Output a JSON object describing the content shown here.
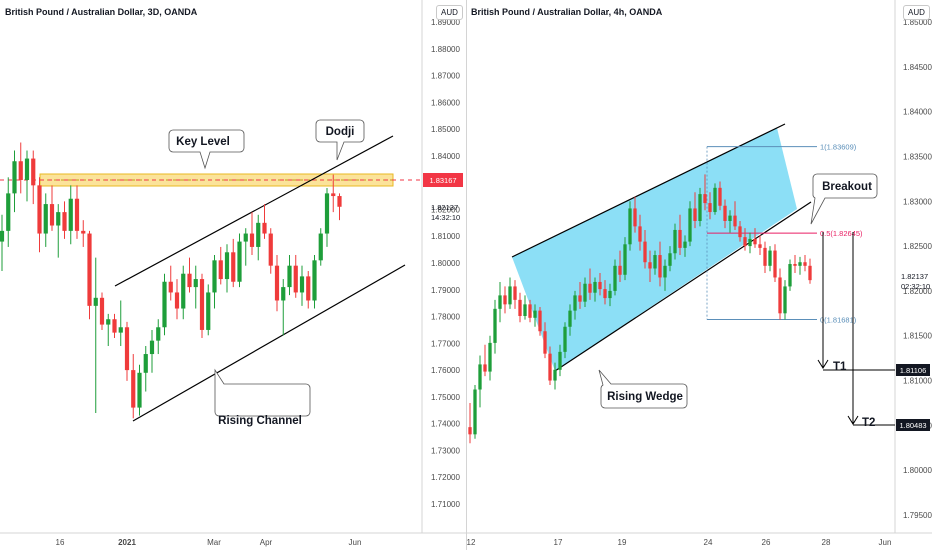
{
  "panels": {
    "left": {
      "title": "British Pound / Australian Dollar, 3D, OANDA",
      "currency": "AUD",
      "y_ticks": [
        "1.89000",
        "1.88000",
        "1.87000",
        "1.86000",
        "1.85000",
        "1.84000",
        "1.83000",
        "1.82000",
        "1.81000",
        "1.80000",
        "1.79000",
        "1.78000",
        "1.77000",
        "1.76000",
        "1.75000",
        "1.74000",
        "1.73000",
        "1.72000",
        "1.71000"
      ],
      "x_ticks": [
        {
          "label": "16",
          "bold": false
        },
        {
          "label": "2021",
          "bold": true
        },
        {
          "label": "Mar",
          "bold": false
        },
        {
          "label": "Apr",
          "bold": false
        },
        {
          "label": "Jun",
          "bold": false
        }
      ],
      "key_level_price": "1.83167",
      "last_price": "1.82137",
      "countdown": "14:32:10",
      "annotations": {
        "key_level": "Key Level",
        "dodji": "Dodji",
        "rising_channel": "Rising Channel"
      }
    },
    "right": {
      "title": "British Pound / Australian Dollar, 4h, OANDA",
      "currency": "AUD",
      "y_ticks": [
        "1.85000",
        "1.84500",
        "1.84000",
        "1.83500",
        "1.83000",
        "1.82500",
        "1.82000",
        "1.81500",
        "1.81000",
        "1.80500",
        "1.80000",
        "1.79500"
      ],
      "x_ticks": [
        {
          "label": "12",
          "bold": false
        },
        {
          "label": "17",
          "bold": false
        },
        {
          "label": "19",
          "bold": false
        },
        {
          "label": "24",
          "bold": false
        },
        {
          "label": "26",
          "bold": false
        },
        {
          "label": "28",
          "bold": false
        },
        {
          "label": "Jun",
          "bold": false
        }
      ],
      "last_price": "1.82137",
      "countdown": "02:32:10",
      "fib_levels": [
        {
          "label": "1(1.83609)",
          "value": 1.83609,
          "color": "#5b8fb9"
        },
        {
          "label": "0.5(1.82645)",
          "value": 1.82645,
          "color": "#e91e63"
        },
        {
          "label": "0(1.81681)",
          "value": 1.81681,
          "color": "#5b8fb9"
        }
      ],
      "targets": [
        {
          "label": "T1",
          "price": "1.81106"
        },
        {
          "label": "T2",
          "price": "1.80483"
        }
      ],
      "annotations": {
        "breakout": "Breakout",
        "rising_wedge": "Rising Wedge"
      }
    }
  },
  "colors": {
    "bull": "#26a69a",
    "bull_dark": "#1e9e3a",
    "bear": "#ef3b3b",
    "key_zone_fill": "#fbe39a",
    "key_zone_edge": "#e8b923",
    "wedge_fill": "#7fdcf5",
    "key_price_tag": "#f23645",
    "text": "#131722"
  },
  "chart_data": [
    {
      "type": "candlestick",
      "title": "British Pound / Australian Dollar, 3D, OANDA",
      "ylim": [
        1.705,
        1.895
      ],
      "x_ticks": [
        "16",
        "2021",
        "Mar",
        "Apr",
        "Jun"
      ],
      "key_level": 1.83167,
      "last_price": 1.82137,
      "annotations": [
        "Key Level",
        "Dodji",
        "Rising Channel"
      ],
      "candles": [
        {
          "o": 1.808,
          "h": 1.818,
          "l": 1.797,
          "c": 1.812
        },
        {
          "o": 1.812,
          "h": 1.832,
          "l": 1.806,
          "c": 1.826
        },
        {
          "o": 1.826,
          "h": 1.842,
          "l": 1.819,
          "c": 1.838
        },
        {
          "o": 1.838,
          "h": 1.845,
          "l": 1.826,
          "c": 1.831
        },
        {
          "o": 1.831,
          "h": 1.842,
          "l": 1.823,
          "c": 1.839
        },
        {
          "o": 1.839,
          "h": 1.842,
          "l": 1.822,
          "c": 1.829
        },
        {
          "o": 1.829,
          "h": 1.832,
          "l": 1.804,
          "c": 1.811
        },
        {
          "o": 1.811,
          "h": 1.826,
          "l": 1.806,
          "c": 1.822
        },
        {
          "o": 1.822,
          "h": 1.829,
          "l": 1.812,
          "c": 1.814
        },
        {
          "o": 1.814,
          "h": 1.822,
          "l": 1.802,
          "c": 1.819
        },
        {
          "o": 1.819,
          "h": 1.823,
          "l": 1.809,
          "c": 1.812
        },
        {
          "o": 1.812,
          "h": 1.829,
          "l": 1.807,
          "c": 1.824
        },
        {
          "o": 1.824,
          "h": 1.829,
          "l": 1.809,
          "c": 1.812
        },
        {
          "o": 1.812,
          "h": 1.816,
          "l": 1.806,
          "c": 1.811
        },
        {
          "o": 1.811,
          "h": 1.812,
          "l": 1.779,
          "c": 1.784
        },
        {
          "o": 1.784,
          "h": 1.802,
          "l": 1.744,
          "c": 1.787
        },
        {
          "o": 1.787,
          "h": 1.789,
          "l": 1.775,
          "c": 1.777
        },
        {
          "o": 1.777,
          "h": 1.781,
          "l": 1.769,
          "c": 1.779
        },
        {
          "o": 1.779,
          "h": 1.781,
          "l": 1.772,
          "c": 1.774
        },
        {
          "o": 1.774,
          "h": 1.786,
          "l": 1.769,
          "c": 1.776
        },
        {
          "o": 1.776,
          "h": 1.778,
          "l": 1.756,
          "c": 1.76
        },
        {
          "o": 1.76,
          "h": 1.766,
          "l": 1.742,
          "c": 1.746
        },
        {
          "o": 1.746,
          "h": 1.762,
          "l": 1.743,
          "c": 1.759
        },
        {
          "o": 1.759,
          "h": 1.769,
          "l": 1.752,
          "c": 1.766
        },
        {
          "o": 1.766,
          "h": 1.775,
          "l": 1.759,
          "c": 1.771
        },
        {
          "o": 1.771,
          "h": 1.779,
          "l": 1.766,
          "c": 1.776
        },
        {
          "o": 1.776,
          "h": 1.796,
          "l": 1.773,
          "c": 1.793
        },
        {
          "o": 1.793,
          "h": 1.799,
          "l": 1.786,
          "c": 1.789
        },
        {
          "o": 1.789,
          "h": 1.794,
          "l": 1.779,
          "c": 1.783
        },
        {
          "o": 1.783,
          "h": 1.799,
          "l": 1.779,
          "c": 1.796
        },
        {
          "o": 1.796,
          "h": 1.802,
          "l": 1.789,
          "c": 1.791
        },
        {
          "o": 1.791,
          "h": 1.799,
          "l": 1.783,
          "c": 1.794
        },
        {
          "o": 1.794,
          "h": 1.796,
          "l": 1.772,
          "c": 1.775
        },
        {
          "o": 1.775,
          "h": 1.792,
          "l": 1.773,
          "c": 1.789
        },
        {
          "o": 1.789,
          "h": 1.803,
          "l": 1.783,
          "c": 1.801
        },
        {
          "o": 1.801,
          "h": 1.806,
          "l": 1.792,
          "c": 1.794
        },
        {
          "o": 1.794,
          "h": 1.807,
          "l": 1.789,
          "c": 1.804
        },
        {
          "o": 1.804,
          "h": 1.809,
          "l": 1.791,
          "c": 1.793
        },
        {
          "o": 1.793,
          "h": 1.811,
          "l": 1.791,
          "c": 1.808
        },
        {
          "o": 1.808,
          "h": 1.813,
          "l": 1.799,
          "c": 1.811
        },
        {
          "o": 1.811,
          "h": 1.819,
          "l": 1.803,
          "c": 1.806
        },
        {
          "o": 1.806,
          "h": 1.818,
          "l": 1.801,
          "c": 1.815
        },
        {
          "o": 1.815,
          "h": 1.822,
          "l": 1.809,
          "c": 1.811
        },
        {
          "o": 1.811,
          "h": 1.813,
          "l": 1.796,
          "c": 1.799
        },
        {
          "o": 1.799,
          "h": 1.803,
          "l": 1.782,
          "c": 1.786
        },
        {
          "o": 1.786,
          "h": 1.794,
          "l": 1.773,
          "c": 1.791
        },
        {
          "o": 1.791,
          "h": 1.803,
          "l": 1.788,
          "c": 1.799
        },
        {
          "o": 1.799,
          "h": 1.803,
          "l": 1.787,
          "c": 1.789
        },
        {
          "o": 1.789,
          "h": 1.799,
          "l": 1.784,
          "c": 1.795
        },
        {
          "o": 1.795,
          "h": 1.797,
          "l": 1.783,
          "c": 1.786
        },
        {
          "o": 1.786,
          "h": 1.803,
          "l": 1.783,
          "c": 1.801
        },
        {
          "o": 1.801,
          "h": 1.813,
          "l": 1.799,
          "c": 1.811
        },
        {
          "o": 1.811,
          "h": 1.828,
          "l": 1.806,
          "c": 1.826
        },
        {
          "o": 1.826,
          "h": 1.833,
          "l": 1.819,
          "c": 1.825
        },
        {
          "o": 1.825,
          "h": 1.826,
          "l": 1.816,
          "c": 1.821
        }
      ]
    },
    {
      "type": "candlestick",
      "title": "British Pound / Australian Dollar, 4h, OANDA",
      "ylim": [
        1.7925,
        1.8515
      ],
      "x_ticks": [
        "12",
        "17",
        "19",
        "24",
        "26",
        "28",
        "Jun"
      ],
      "last_price": 1.82137,
      "fib_levels": [
        1.83609,
        1.82645,
        1.81681
      ],
      "targets": [
        {
          "label": "T1",
          "value": 1.81106
        },
        {
          "label": "T2",
          "value": 1.80483
        }
      ],
      "annotations": [
        "Breakout",
        "Rising Wedge"
      ],
      "candles": [
        {
          "o": 1.8048,
          "h": 1.8075,
          "l": 1.803,
          "c": 1.804
        },
        {
          "o": 1.804,
          "h": 1.8095,
          "l": 1.8035,
          "c": 1.809
        },
        {
          "o": 1.809,
          "h": 1.8128,
          "l": 1.807,
          "c": 1.8118
        },
        {
          "o": 1.8118,
          "h": 1.814,
          "l": 1.8105,
          "c": 1.811
        },
        {
          "o": 1.811,
          "h": 1.815,
          "l": 1.81,
          "c": 1.8142
        },
        {
          "o": 1.8142,
          "h": 1.819,
          "l": 1.813,
          "c": 1.818
        },
        {
          "o": 1.818,
          "h": 1.821,
          "l": 1.8165,
          "c": 1.8195
        },
        {
          "o": 1.8195,
          "h": 1.8205,
          "l": 1.8175,
          "c": 1.8185
        },
        {
          "o": 1.8185,
          "h": 1.8215,
          "l": 1.818,
          "c": 1.8205
        },
        {
          "o": 1.8205,
          "h": 1.8212,
          "l": 1.818,
          "c": 1.819
        },
        {
          "o": 1.819,
          "h": 1.8198,
          "l": 1.8165,
          "c": 1.8172
        },
        {
          "o": 1.8172,
          "h": 1.8195,
          "l": 1.8168,
          "c": 1.8185
        },
        {
          "o": 1.8185,
          "h": 1.819,
          "l": 1.8165,
          "c": 1.817
        },
        {
          "o": 1.817,
          "h": 1.8185,
          "l": 1.816,
          "c": 1.8178
        },
        {
          "o": 1.8178,
          "h": 1.8182,
          "l": 1.815,
          "c": 1.8155
        },
        {
          "o": 1.8155,
          "h": 1.8165,
          "l": 1.8125,
          "c": 1.813
        },
        {
          "o": 1.813,
          "h": 1.8138,
          "l": 1.8095,
          "c": 1.81
        },
        {
          "o": 1.81,
          "h": 1.812,
          "l": 1.809,
          "c": 1.8112
        },
        {
          "o": 1.8112,
          "h": 1.814,
          "l": 1.8105,
          "c": 1.8132
        },
        {
          "o": 1.8132,
          "h": 1.8165,
          "l": 1.8125,
          "c": 1.816
        },
        {
          "o": 1.816,
          "h": 1.8185,
          "l": 1.815,
          "c": 1.8178
        },
        {
          "o": 1.8178,
          "h": 1.82,
          "l": 1.8168,
          "c": 1.8195
        },
        {
          "o": 1.8195,
          "h": 1.821,
          "l": 1.818,
          "c": 1.8188
        },
        {
          "o": 1.8188,
          "h": 1.8215,
          "l": 1.8182,
          "c": 1.8208
        },
        {
          "o": 1.8208,
          "h": 1.8225,
          "l": 1.819,
          "c": 1.8198
        },
        {
          "o": 1.8198,
          "h": 1.8215,
          "l": 1.8188,
          "c": 1.821
        },
        {
          "o": 1.821,
          "h": 1.822,
          "l": 1.8195,
          "c": 1.8202
        },
        {
          "o": 1.8202,
          "h": 1.8212,
          "l": 1.8185,
          "c": 1.8192
        },
        {
          "o": 1.8192,
          "h": 1.8208,
          "l": 1.8183,
          "c": 1.82
        },
        {
          "o": 1.82,
          "h": 1.8235,
          "l": 1.8195,
          "c": 1.8228
        },
        {
          "o": 1.8228,
          "h": 1.8245,
          "l": 1.821,
          "c": 1.8218
        },
        {
          "o": 1.8218,
          "h": 1.826,
          "l": 1.8212,
          "c": 1.8252
        },
        {
          "o": 1.8252,
          "h": 1.83,
          "l": 1.8245,
          "c": 1.8292
        },
        {
          "o": 1.8292,
          "h": 1.8305,
          "l": 1.8265,
          "c": 1.8272
        },
        {
          "o": 1.8272,
          "h": 1.8285,
          "l": 1.8245,
          "c": 1.8255
        },
        {
          "o": 1.8255,
          "h": 1.8268,
          "l": 1.8225,
          "c": 1.8232
        },
        {
          "o": 1.8232,
          "h": 1.8245,
          "l": 1.821,
          "c": 1.8225
        },
        {
          "o": 1.8225,
          "h": 1.8245,
          "l": 1.8218,
          "c": 1.824
        },
        {
          "o": 1.824,
          "h": 1.8255,
          "l": 1.8205,
          "c": 1.8215
        },
        {
          "o": 1.8215,
          "h": 1.8235,
          "l": 1.82,
          "c": 1.8228
        },
        {
          "o": 1.8228,
          "h": 1.825,
          "l": 1.8222,
          "c": 1.8242
        },
        {
          "o": 1.8242,
          "h": 1.8275,
          "l": 1.8235,
          "c": 1.8268
        },
        {
          "o": 1.8268,
          "h": 1.8285,
          "l": 1.824,
          "c": 1.8248
        },
        {
          "o": 1.8248,
          "h": 1.8262,
          "l": 1.8238,
          "c": 1.8255
        },
        {
          "o": 1.8255,
          "h": 1.83,
          "l": 1.825,
          "c": 1.8292
        },
        {
          "o": 1.8292,
          "h": 1.831,
          "l": 1.827,
          "c": 1.8278
        },
        {
          "o": 1.8278,
          "h": 1.8315,
          "l": 1.8272,
          "c": 1.8308
        },
        {
          "o": 1.8308,
          "h": 1.833,
          "l": 1.829,
          "c": 1.8298
        },
        {
          "o": 1.8298,
          "h": 1.831,
          "l": 1.828,
          "c": 1.8288
        },
        {
          "o": 1.8288,
          "h": 1.832,
          "l": 1.8285,
          "c": 1.8315
        },
        {
          "o": 1.8315,
          "h": 1.8322,
          "l": 1.829,
          "c": 1.8295
        },
        {
          "o": 1.8295,
          "h": 1.8302,
          "l": 1.827,
          "c": 1.8278
        },
        {
          "o": 1.8278,
          "h": 1.829,
          "l": 1.8265,
          "c": 1.8284
        },
        {
          "o": 1.8284,
          "h": 1.83,
          "l": 1.8268,
          "c": 1.8272
        },
        {
          "o": 1.8272,
          "h": 1.8278,
          "l": 1.8255,
          "c": 1.826
        },
        {
          "o": 1.826,
          "h": 1.827,
          "l": 1.8245,
          "c": 1.825
        },
        {
          "o": 1.825,
          "h": 1.8265,
          "l": 1.8242,
          "c": 1.8258
        },
        {
          "o": 1.8258,
          "h": 1.827,
          "l": 1.8248,
          "c": 1.8252
        },
        {
          "o": 1.8252,
          "h": 1.8262,
          "l": 1.824,
          "c": 1.8248
        },
        {
          "o": 1.8248,
          "h": 1.8255,
          "l": 1.822,
          "c": 1.8228
        },
        {
          "o": 1.8228,
          "h": 1.825,
          "l": 1.8222,
          "c": 1.8245
        },
        {
          "o": 1.8245,
          "h": 1.8252,
          "l": 1.821,
          "c": 1.8215
        },
        {
          "o": 1.8215,
          "h": 1.8225,
          "l": 1.8168,
          "c": 1.8175
        },
        {
          "o": 1.8175,
          "h": 1.8212,
          "l": 1.8168,
          "c": 1.8205
        },
        {
          "o": 1.8205,
          "h": 1.8235,
          "l": 1.82,
          "c": 1.823
        },
        {
          "o": 1.823,
          "h": 1.824,
          "l": 1.822,
          "c": 1.8228
        },
        {
          "o": 1.8228,
          "h": 1.8238,
          "l": 1.8218,
          "c": 1.8232
        },
        {
          "o": 1.8232,
          "h": 1.824,
          "l": 1.8222,
          "c": 1.8228
        },
        {
          "o": 1.8228,
          "h": 1.8236,
          "l": 1.8208,
          "c": 1.8212
        }
      ]
    }
  ]
}
